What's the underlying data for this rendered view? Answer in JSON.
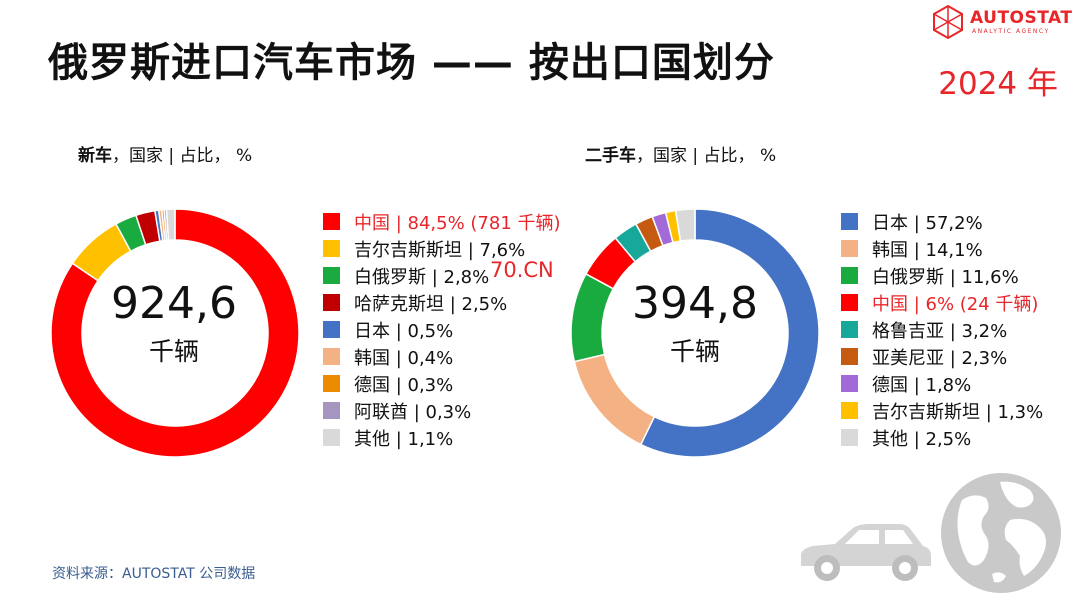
{
  "header": {
    "title": "俄罗斯进口汽车市场 —— 按出口国划分",
    "year": "2024 年",
    "logo_text": "AUTOSTAT",
    "logo_subtext": "ANALYTIC AGENCY"
  },
  "watermark": "70.CN",
  "source": "资料来源：AUTOSTAT 公司数据",
  "icons": [
    "car-icon",
    "globe-icon"
  ],
  "chart_data": [
    {
      "type": "pie",
      "subtitle_bold": "新车",
      "subtitle_rest": "，国家 | 占比， %",
      "center_value": "924,6",
      "center_unit": "千辆",
      "slices": [
        {
          "label": "中国 |  84,5% (781 千辆)",
          "value": 84.5,
          "color": "#ff0000",
          "highlight": true
        },
        {
          "label": "吉尔吉斯斯坦 |  7,6%",
          "value": 7.6,
          "color": "#ffc000"
        },
        {
          "label": "白俄罗斯 |  2,8%",
          "value": 2.8,
          "color": "#1aab40"
        },
        {
          "label": "哈萨克斯坦 |  2,5%",
          "value": 2.5,
          "color": "#c00000"
        },
        {
          "label": "日本 |  0,5%",
          "value": 0.5,
          "color": "#4472c4"
        },
        {
          "label": "韩国 |  0,4%",
          "value": 0.4,
          "color": "#f4b183"
        },
        {
          "label": "德国 |  0,3%",
          "value": 0.3,
          "color": "#ed8b00"
        },
        {
          "label": "阿联酋 |  0,3%",
          "value": 0.3,
          "color": "#a695be"
        },
        {
          "label": "其他 |  1,1%",
          "value": 1.1,
          "color": "#d9d9d9"
        }
      ]
    },
    {
      "type": "pie",
      "subtitle_bold": "二手车",
      "subtitle_rest": "，国家 | 占比， %",
      "center_value": "394,8",
      "center_unit": "千辆",
      "slices": [
        {
          "label": "日本 |  57,2%",
          "value": 57.2,
          "color": "#4472c4"
        },
        {
          "label": "韩国 |  14,1%",
          "value": 14.1,
          "color": "#f4b183"
        },
        {
          "label": "白俄罗斯 |  11,6%",
          "value": 11.6,
          "color": "#1aab40"
        },
        {
          "label": "中国 |  6% (24 千辆)",
          "value": 6.0,
          "color": "#ff0000",
          "highlight": true
        },
        {
          "label": "格鲁吉亚 |  3,2%",
          "value": 3.2,
          "color": "#17a899"
        },
        {
          "label": "亚美尼亚 |  2,3%",
          "value": 2.3,
          "color": "#c55a11"
        },
        {
          "label": "德国 |  1,8%",
          "value": 1.8,
          "color": "#a26ad8"
        },
        {
          "label": "吉尔吉斯斯坦 |  1,3%",
          "value": 1.3,
          "color": "#ffc000"
        },
        {
          "label": "其他 |  2,5%",
          "value": 2.5,
          "color": "#d9d9d9"
        }
      ]
    }
  ]
}
